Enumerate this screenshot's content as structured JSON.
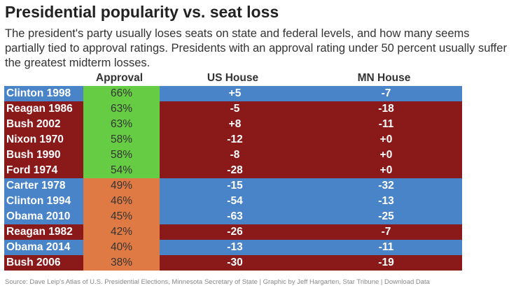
{
  "title": "Presidential popularity vs. seat loss",
  "subtitle": "The president's party usually loses seats on state and federal levels, and how many seems partially tied to approval ratings. Presidents with an approval rating under 50 percent usually suffer the greatest midterm losses.",
  "source": "Source: Dave Leip's Atlas of U.S. Presidential Elections, Minnesota Secretary of State | Graphic by Jeff Hargarten, Star Tribune | Download Data",
  "colors": {
    "democrat": "#4a84c8",
    "republican": "#8a1a1a",
    "approval_high": "#66cc44",
    "approval_low": "#e07a44"
  },
  "chart_data": {
    "type": "table",
    "columns": [
      "",
      "Approval",
      "US House",
      "MN House"
    ],
    "rows": [
      {
        "president": "Clinton 1998",
        "party": "democrat",
        "approval": "66%",
        "approval_value": 66,
        "us_house": "+5",
        "mn_house": "-7"
      },
      {
        "president": "Reagan 1986",
        "party": "republican",
        "approval": "63%",
        "approval_value": 63,
        "us_house": "-5",
        "mn_house": "-18"
      },
      {
        "president": "Bush 2002",
        "party": "republican",
        "approval": "63%",
        "approval_value": 63,
        "us_house": "+8",
        "mn_house": "-11"
      },
      {
        "president": "Nixon 1970",
        "party": "republican",
        "approval": "58%",
        "approval_value": 58,
        "us_house": "-12",
        "mn_house": "+0"
      },
      {
        "president": "Bush 1990",
        "party": "republican",
        "approval": "58%",
        "approval_value": 58,
        "us_house": "-8",
        "mn_house": "+0"
      },
      {
        "president": "Ford 1974",
        "party": "republican",
        "approval": "54%",
        "approval_value": 54,
        "us_house": "-28",
        "mn_house": "+0"
      },
      {
        "president": "Carter 1978",
        "party": "democrat",
        "approval": "49%",
        "approval_value": 49,
        "us_house": "-15",
        "mn_house": "-32"
      },
      {
        "president": "Clinton 1994",
        "party": "democrat",
        "approval": "46%",
        "approval_value": 46,
        "us_house": "-54",
        "mn_house": "-13"
      },
      {
        "president": "Obama 2010",
        "party": "democrat",
        "approval": "45%",
        "approval_value": 45,
        "us_house": "-63",
        "mn_house": "-25"
      },
      {
        "president": "Reagan 1982",
        "party": "republican",
        "approval": "42%",
        "approval_value": 42,
        "us_house": "-26",
        "mn_house": "-7"
      },
      {
        "president": "Obama 2014",
        "party": "democrat",
        "approval": "40%",
        "approval_value": 40,
        "us_house": "-13",
        "mn_house": "-11"
      },
      {
        "president": "Bush 2006",
        "party": "republican",
        "approval": "38%",
        "approval_value": 38,
        "us_house": "-30",
        "mn_house": "-19"
      }
    ]
  }
}
